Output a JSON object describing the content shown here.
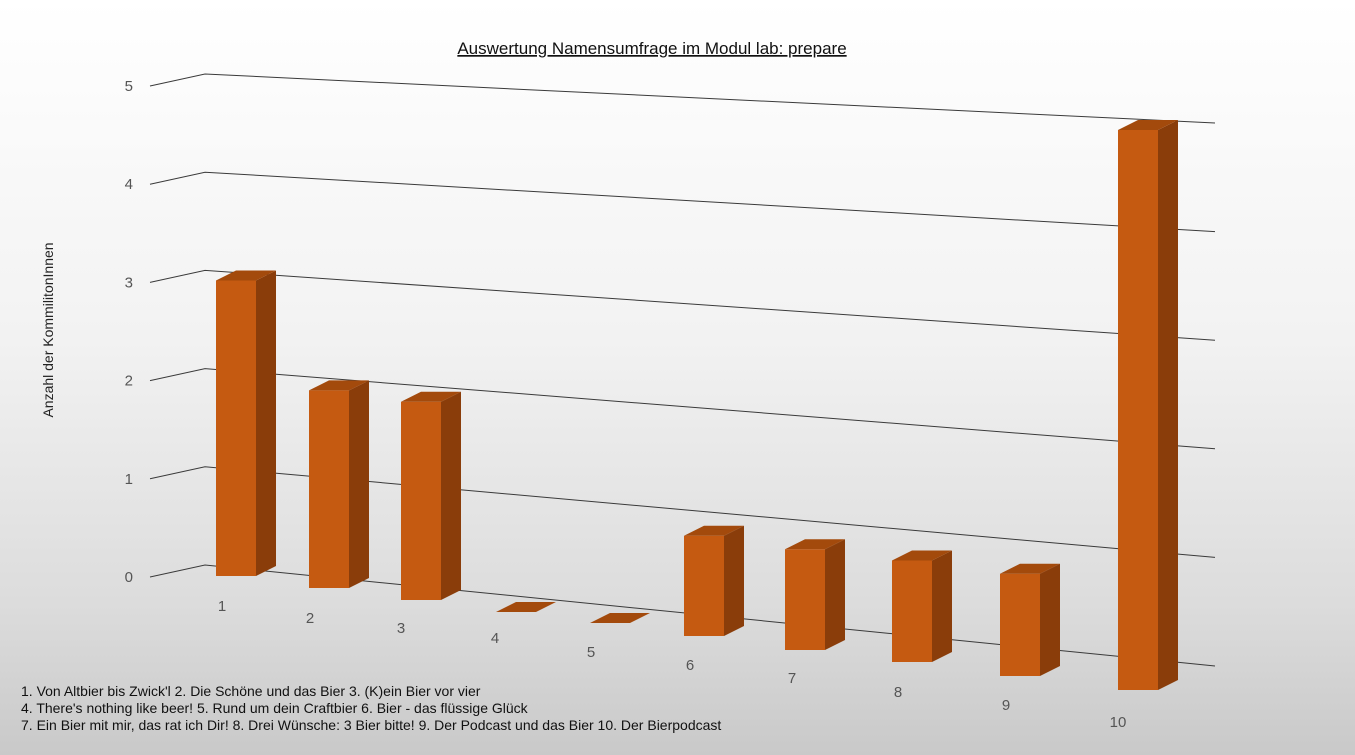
{
  "chart_data": {
    "type": "bar",
    "title": "Auswertung Namensumfrage im Modul lab: prepare",
    "xlabel": "",
    "ylabel": "Anzahl der KommilitonInnen",
    "categories": [
      "1",
      "2",
      "3",
      "4",
      "5",
      "6",
      "7",
      "8",
      "9",
      "10"
    ],
    "values": [
      3,
      2,
      2,
      0,
      0,
      1,
      1,
      1,
      1,
      5
    ],
    "ylim": [
      0,
      5
    ],
    "yticks": [
      0,
      1,
      2,
      3,
      4,
      5
    ],
    "grid": true,
    "bar_color": "#c55a11",
    "three_d": true
  },
  "legend_lines": [
    "1. Von Altbier bis Zwick'l  2. Die Schöne und das Bier  3. (K)ein Bier vor vier",
    "4. There's nothing like beer!  5. Rund um dein Craftbier  6. Bier - das flüssige Glück",
    "7. Ein Bier mit mir, das rat ich Dir!  8. Drei Wünsche: 3 Bier bitte!  9. Der Podcast und das Bier  10. Der Bierpodcast"
  ]
}
